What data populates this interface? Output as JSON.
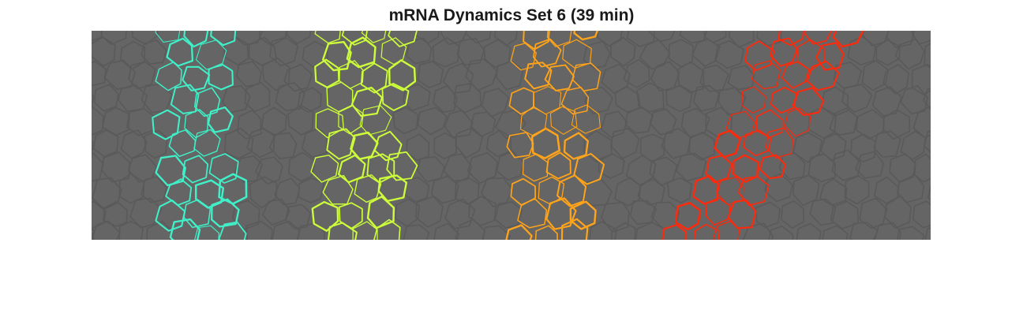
{
  "figure": {
    "title": "mRNA Dynamics Set 6 (39 min)"
  },
  "colors": {
    "background": "#656565",
    "cell_edge": "#5a5a5a",
    "stripes": [
      "#3ff0c8",
      "#cdfd3a",
      "#ffa41a",
      "#ff2a0c"
    ]
  },
  "stripes": [
    {
      "color": "#3ff0c8"
    },
    {
      "color": "#cdfd3a"
    },
    {
      "color": "#ffa41a"
    },
    {
      "color": "#ff2a0c"
    }
  ]
}
